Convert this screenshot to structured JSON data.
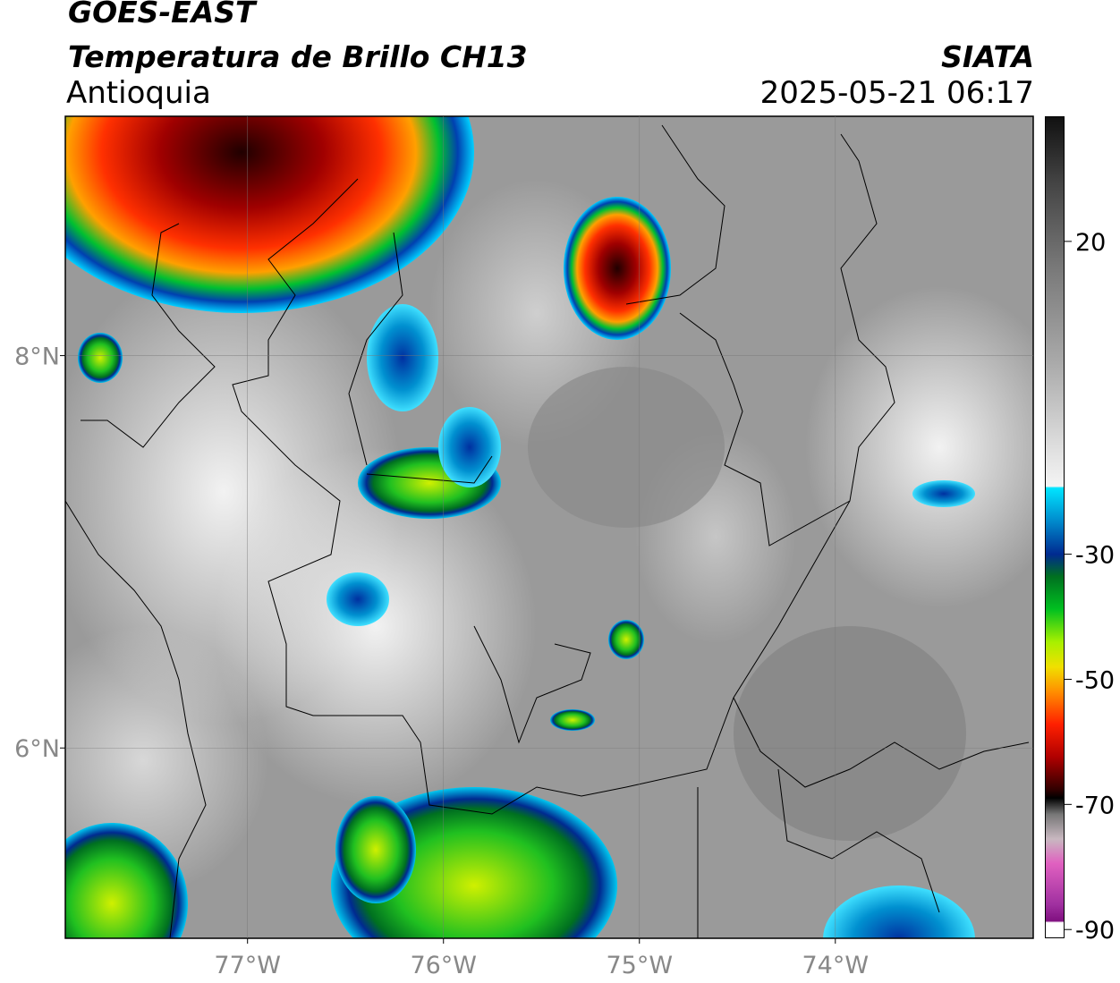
{
  "header": {
    "satellite": "GOES-EAST",
    "product": "Temperatura de Brillo CH13",
    "region": "Antioquia",
    "source": "SIATA",
    "datetime": "2025-05-21 06:17"
  },
  "map": {
    "lon_range": [
      -77.93,
      -72.99
    ],
    "lat_range": [
      5.03,
      9.22
    ],
    "lon_ticks": [
      {
        "value": -77,
        "label": "77°W"
      },
      {
        "value": -76,
        "label": "76°W"
      },
      {
        "value": -75,
        "label": "75°W"
      },
      {
        "value": -74,
        "label": "74°W"
      }
    ],
    "lat_ticks": [
      {
        "value": 8,
        "label": "8°N"
      },
      {
        "value": 6,
        "label": "6°N"
      }
    ],
    "grid": true
  },
  "colorbar": {
    "range": [
      -91.4,
      40
    ],
    "ticks": [
      20,
      -30,
      -50,
      -70,
      -90
    ]
  }
}
